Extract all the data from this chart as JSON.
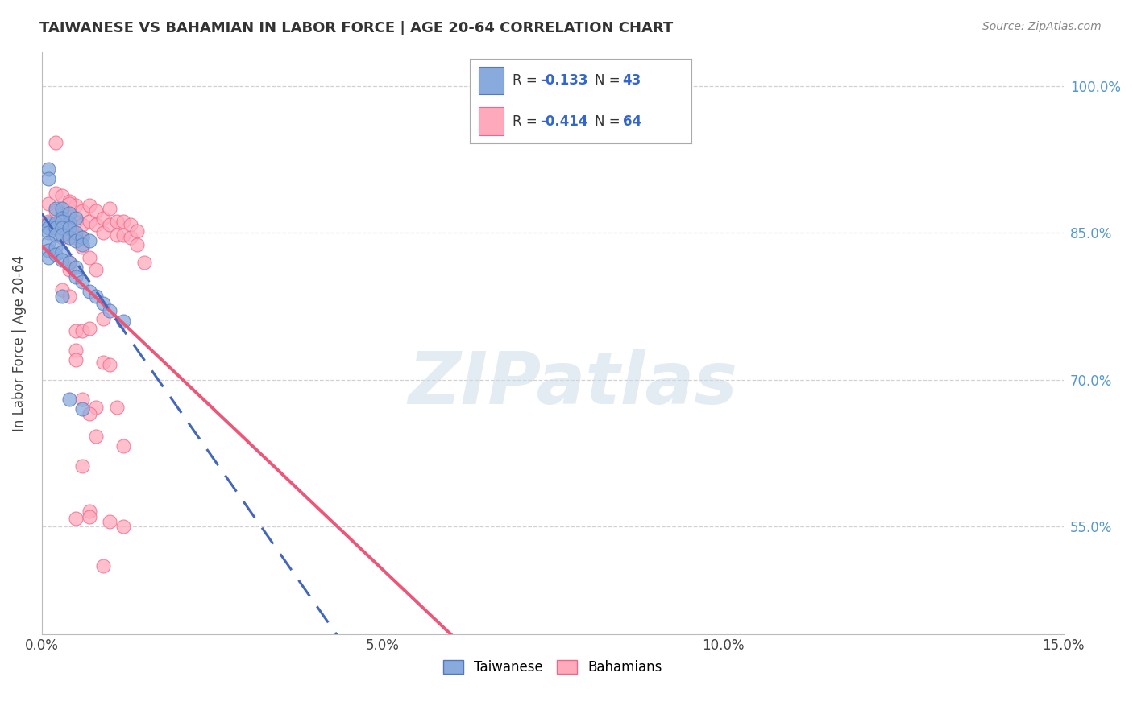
{
  "title": "TAIWANESE VS BAHAMIAN IN LABOR FORCE | AGE 20-64 CORRELATION CHART",
  "source": "Source: ZipAtlas.com",
  "ylabel": "In Labor Force | Age 20-64",
  "xlim": [
    0.0,
    0.15
  ],
  "ylim": [
    0.44,
    1.035
  ],
  "yticks": [
    0.55,
    0.7,
    0.85,
    1.0
  ],
  "ytick_labels": [
    "55.0%",
    "70.0%",
    "85.0%",
    "100.0%"
  ],
  "xticks": [
    0.0,
    0.05,
    0.1,
    0.15
  ],
  "xtick_labels": [
    "0.0%",
    "5.0%",
    "10.0%",
    "15.0%"
  ],
  "tw_color": "#88AADD",
  "tw_edge": "#5577BB",
  "ba_color": "#FFAABC",
  "ba_edge": "#EE6688",
  "tw_line_color": "#4466BB",
  "ba_line_color": "#EE5577",
  "tw_R": -0.133,
  "tw_N": 43,
  "ba_R": -0.414,
  "ba_N": 64,
  "grid_color": "#CCCCCC",
  "watermark": "ZIPatlas",
  "watermark_color": "#CCDDE8",
  "tw_x": [
    0.001,
    0.001,
    0.002,
    0.003,
    0.003,
    0.004,
    0.004,
    0.005,
    0.001,
    0.001,
    0.001,
    0.002,
    0.002,
    0.002,
    0.003,
    0.003,
    0.003,
    0.004,
    0.004,
    0.005,
    0.005,
    0.006,
    0.006,
    0.007,
    0.001,
    0.001,
    0.001,
    0.002,
    0.002,
    0.003,
    0.003,
    0.004,
    0.005,
    0.005,
    0.006,
    0.007,
    0.008,
    0.009,
    0.01,
    0.012,
    0.003,
    0.004,
    0.006
  ],
  "tw_y": [
    0.915,
    0.905,
    0.875,
    0.875,
    0.865,
    0.87,
    0.86,
    0.865,
    0.86,
    0.855,
    0.85,
    0.86,
    0.855,
    0.848,
    0.862,
    0.855,
    0.848,
    0.855,
    0.845,
    0.85,
    0.842,
    0.845,
    0.838,
    0.842,
    0.84,
    0.832,
    0.825,
    0.835,
    0.828,
    0.83,
    0.822,
    0.82,
    0.815,
    0.805,
    0.8,
    0.79,
    0.785,
    0.778,
    0.77,
    0.76,
    0.785,
    0.68,
    0.67
  ],
  "ba_x": [
    0.001,
    0.001,
    0.002,
    0.002,
    0.003,
    0.003,
    0.004,
    0.004,
    0.005,
    0.005,
    0.005,
    0.006,
    0.006,
    0.006,
    0.007,
    0.007,
    0.008,
    0.008,
    0.009,
    0.009,
    0.01,
    0.01,
    0.011,
    0.011,
    0.012,
    0.012,
    0.013,
    0.013,
    0.014,
    0.014,
    0.015,
    0.002,
    0.003,
    0.004,
    0.005,
    0.006,
    0.007,
    0.008,
    0.009,
    0.003,
    0.004,
    0.005,
    0.006,
    0.007,
    0.009,
    0.011,
    0.003,
    0.004,
    0.005,
    0.006,
    0.007,
    0.009,
    0.012,
    0.004,
    0.005,
    0.006,
    0.008,
    0.01,
    0.007,
    0.008,
    0.005,
    0.007,
    0.01,
    0.012
  ],
  "ba_y": [
    0.88,
    0.862,
    0.89,
    0.872,
    0.888,
    0.87,
    0.882,
    0.865,
    0.878,
    0.862,
    0.848,
    0.872,
    0.858,
    0.845,
    0.878,
    0.862,
    0.872,
    0.858,
    0.865,
    0.85,
    0.875,
    0.858,
    0.862,
    0.848,
    0.862,
    0.848,
    0.858,
    0.845,
    0.852,
    0.838,
    0.82,
    0.942,
    0.845,
    0.88,
    0.845,
    0.835,
    0.825,
    0.812,
    0.762,
    0.86,
    0.812,
    0.75,
    0.75,
    0.752,
    0.718,
    0.672,
    0.792,
    0.785,
    0.73,
    0.612,
    0.566,
    0.51,
    0.632,
    0.82,
    0.72,
    0.68,
    0.672,
    0.715,
    0.665,
    0.642,
    0.558,
    0.56,
    0.555,
    0.55
  ]
}
